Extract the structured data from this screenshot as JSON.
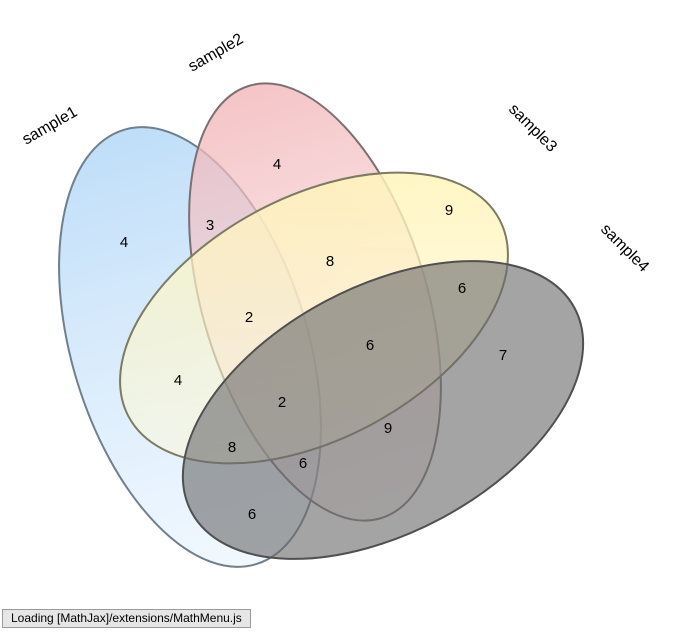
{
  "diagram": {
    "sets": [
      {
        "name": "sample1",
        "color": "#9fcdf7",
        "stroke": "#6f7f8c"
      },
      {
        "name": "sample2",
        "color": "#efa3a8",
        "stroke": "#7c6f72"
      },
      {
        "name": "sample3",
        "color": "#fff19a",
        "stroke": "#7d7a63"
      },
      {
        "name": "sample4",
        "color": "#707070",
        "stroke": "#505050"
      }
    ],
    "regions": [
      {
        "id": "s1",
        "value": "4"
      },
      {
        "id": "s2",
        "value": "4"
      },
      {
        "id": "s3",
        "value": "9"
      },
      {
        "id": "s4",
        "value": "7"
      },
      {
        "id": "s1-s2",
        "value": "3"
      },
      {
        "id": "s2-s3",
        "value": "8"
      },
      {
        "id": "s3-s4",
        "value": "6"
      },
      {
        "id": "s1-s2-s3",
        "value": "2"
      },
      {
        "id": "s2-s3-s4",
        "value": "6"
      },
      {
        "id": "s1-s3",
        "value": "4"
      },
      {
        "id": "s1-s2-s3-s4",
        "value": "2"
      },
      {
        "id": "s2-s4",
        "value": "9"
      },
      {
        "id": "s1-s3-s4",
        "value": "8"
      },
      {
        "id": "s1-s2-s4",
        "value": "6"
      },
      {
        "id": "s1-s4",
        "value": "6"
      }
    ]
  },
  "status": {
    "message": "Loading [MathJax]/extensions/MathMenu.js"
  }
}
